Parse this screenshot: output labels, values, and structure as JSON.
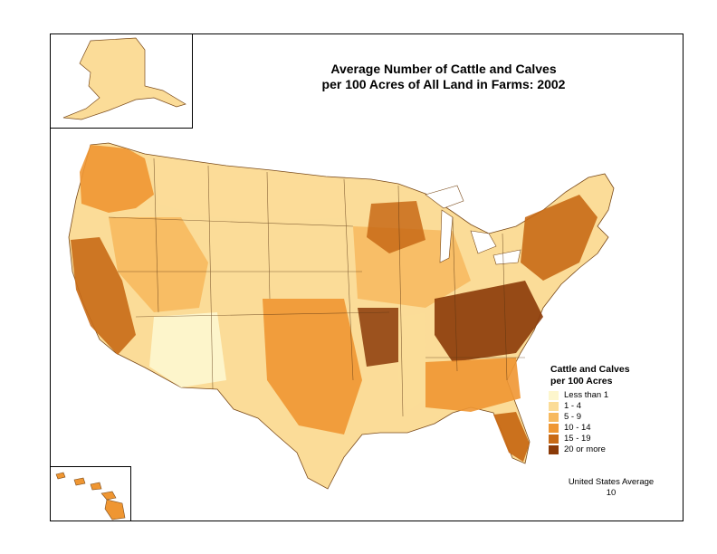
{
  "title": {
    "line1": "Average Number of Cattle and Calves",
    "line2": "per 100 Acres of All Land in Farms:  2002"
  },
  "legend": {
    "title_line1": "Cattle and Calves",
    "title_line2": "per 100 Acres",
    "items": [
      {
        "label": "Less than 1",
        "color": "#fdf6cd"
      },
      {
        "label": "1 - 4",
        "color": "#fbdc98"
      },
      {
        "label": "5 - 9",
        "color": "#f7b95e"
      },
      {
        "label": "10 - 14",
        "color": "#ef9632"
      },
      {
        "label": "15 - 19",
        "color": "#c86a16"
      },
      {
        "label": "20 or more",
        "color": "#8b3a08"
      }
    ]
  },
  "us_average": {
    "label": "United States Average",
    "value": "10"
  },
  "regions": [
    {
      "name": "pacific-northwest",
      "class": 3
    },
    {
      "name": "northern-plains",
      "class": 1
    },
    {
      "name": "great-basin",
      "class": 2
    },
    {
      "name": "california",
      "class": 4
    },
    {
      "name": "desert-southwest",
      "class": 0
    },
    {
      "name": "southern-plains",
      "class": 3
    },
    {
      "name": "corn-belt",
      "class": 2
    },
    {
      "name": "mississippi-delta",
      "class": 1
    },
    {
      "name": "appalachia",
      "class": 5
    },
    {
      "name": "southeast",
      "class": 3
    },
    {
      "name": "northeast",
      "class": 4
    },
    {
      "name": "florida",
      "class": 4
    },
    {
      "name": "ozarks",
      "class": 5
    },
    {
      "name": "wisconsin",
      "class": 4
    }
  ]
}
